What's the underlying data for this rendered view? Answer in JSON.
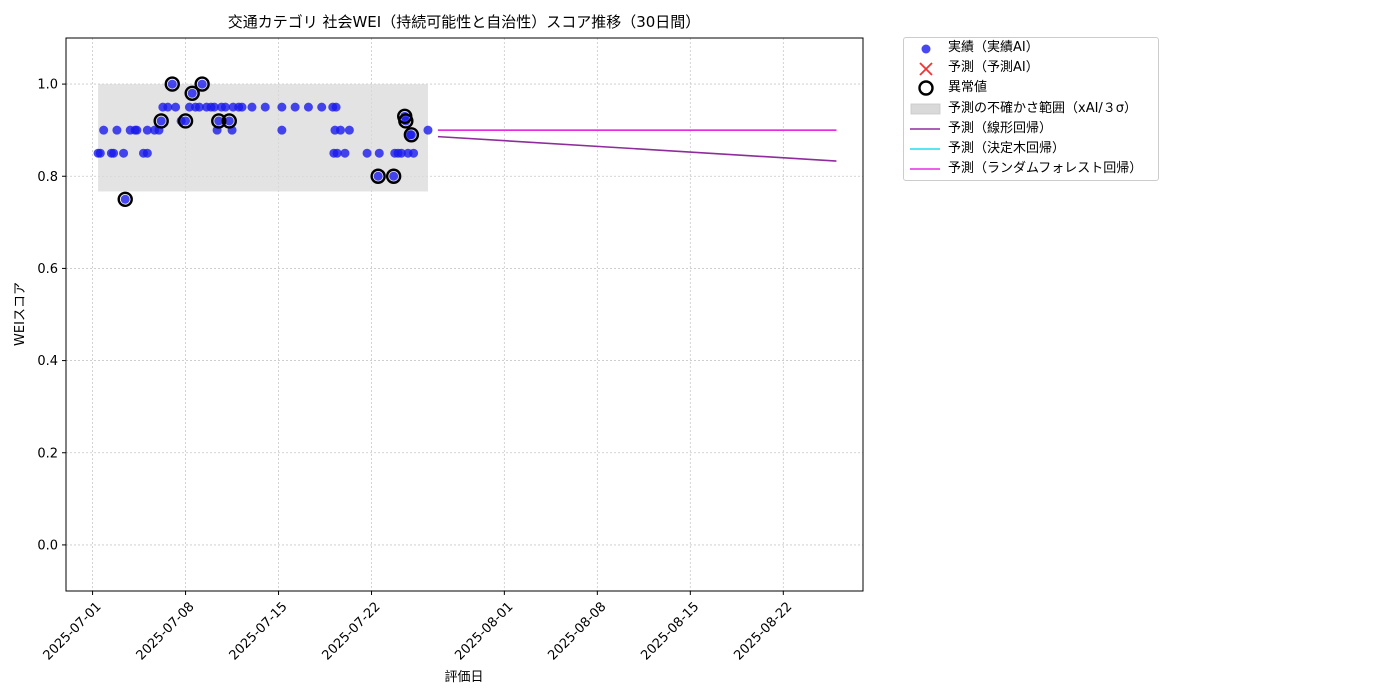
{
  "chart_data": {
    "type": "scatter",
    "title": "交通カテゴリ 社会WEI（持続可能性と自治性）スコア推移（30日間）",
    "xlabel": "評価日",
    "ylabel": "WEIスコア",
    "xlim": [
      "2025-06-29T00:00",
      "2025-08-28T00:00"
    ],
    "ylim": [
      -0.1,
      1.1
    ],
    "x_ticks": [
      "2025-07-01",
      "2025-07-08",
      "2025-07-15",
      "2025-07-22",
      "2025-08-01",
      "2025-08-08",
      "2025-08-15",
      "2025-08-22"
    ],
    "y_ticks": [
      0.0,
      0.2,
      0.4,
      0.6,
      0.8,
      1.0
    ],
    "grid": true,
    "legend_position": "outside-upper-right",
    "colors": {
      "actual": "#1a1aee",
      "forecast_ai": "#ee3333",
      "anomaly": "#000000",
      "uncertainty": "#d9d9d9",
      "linear": "#8e2c9b",
      "tree": "#22ddee",
      "forest": "#e52ce5"
    },
    "series": [
      {
        "name": "実績（実績AI）",
        "type": "scatter",
        "points": [
          [
            "2025-07-01T10:00",
            0.85
          ],
          [
            "2025-07-01T14:00",
            0.85
          ],
          [
            "2025-07-01T20:00",
            0.9
          ],
          [
            "2025-07-02T10:00",
            0.85
          ],
          [
            "2025-07-02T14:00",
            0.85
          ],
          [
            "2025-07-02T20:00",
            0.9
          ],
          [
            "2025-07-03T08:00",
            0.85
          ],
          [
            "2025-07-03T11:00",
            0.75
          ],
          [
            "2025-07-03T20:00",
            0.9
          ],
          [
            "2025-07-04T05:00",
            0.9
          ],
          [
            "2025-07-04T08:00",
            0.9
          ],
          [
            "2025-07-04T20:00",
            0.85
          ],
          [
            "2025-07-05T03:00",
            0.85
          ],
          [
            "2025-07-05T03:00",
            0.9
          ],
          [
            "2025-07-05T16:00",
            0.9
          ],
          [
            "2025-07-06T00:00",
            0.9
          ],
          [
            "2025-07-06T04:00",
            0.92
          ],
          [
            "2025-07-06T07:00",
            0.95
          ],
          [
            "2025-07-06T16:00",
            0.95
          ],
          [
            "2025-07-07T00:00",
            1.0
          ],
          [
            "2025-07-07T06:00",
            0.95
          ],
          [
            "2025-07-07T16:00",
            0.92
          ],
          [
            "2025-07-08T00:00",
            0.92
          ],
          [
            "2025-07-08T07:00",
            0.95
          ],
          [
            "2025-07-08T12:00",
            0.98
          ],
          [
            "2025-07-08T18:00",
            0.95
          ],
          [
            "2025-07-09T01:00",
            0.95
          ],
          [
            "2025-07-09T06:00",
            1.0
          ],
          [
            "2025-07-09T14:00",
            0.95
          ],
          [
            "2025-07-09T22:00",
            0.95
          ],
          [
            "2025-07-10T04:00",
            0.95
          ],
          [
            "2025-07-10T09:00",
            0.9
          ],
          [
            "2025-07-10T12:00",
            0.92
          ],
          [
            "2025-07-10T17:00",
            0.95
          ],
          [
            "2025-07-11T00:00",
            0.95
          ],
          [
            "2025-07-11T07:00",
            0.92
          ],
          [
            "2025-07-11T12:00",
            0.9
          ],
          [
            "2025-07-11T14:00",
            0.95
          ],
          [
            "2025-07-12T00:00",
            0.95
          ],
          [
            "2025-07-12T06:00",
            0.95
          ],
          [
            "2025-07-13T00:00",
            0.95
          ],
          [
            "2025-07-14T00:00",
            0.95
          ],
          [
            "2025-07-15T06:00",
            0.95
          ],
          [
            "2025-07-15T06:00",
            0.9
          ],
          [
            "2025-07-16T06:00",
            0.95
          ],
          [
            "2025-07-17T06:00",
            0.95
          ],
          [
            "2025-07-18T06:00",
            0.95
          ],
          [
            "2025-07-19T02:00",
            0.95
          ],
          [
            "2025-07-19T04:00",
            0.85
          ],
          [
            "2025-07-19T06:00",
            0.9
          ],
          [
            "2025-07-19T08:00",
            0.95
          ],
          [
            "2025-07-19T10:00",
            0.85
          ],
          [
            "2025-07-19T16:00",
            0.9
          ],
          [
            "2025-07-20T00:00",
            0.85
          ],
          [
            "2025-07-20T08:00",
            0.9
          ],
          [
            "2025-07-21T16:00",
            0.85
          ],
          [
            "2025-07-22T12:00",
            0.8
          ],
          [
            "2025-07-22T14:00",
            0.85
          ],
          [
            "2025-07-23T16:00",
            0.8
          ],
          [
            "2025-07-23T18:00",
            0.85
          ],
          [
            "2025-07-24T00:00",
            0.85
          ],
          [
            "2025-07-24T06:00",
            0.85
          ],
          [
            "2025-07-24T12:00",
            0.93
          ],
          [
            "2025-07-24T14:00",
            0.92
          ],
          [
            "2025-07-24T18:00",
            0.85
          ],
          [
            "2025-07-24T22:00",
            0.89
          ],
          [
            "2025-07-25T00:00",
            0.89
          ],
          [
            "2025-07-25T04:00",
            0.85
          ],
          [
            "2025-07-26T06:00",
            0.9
          ]
        ]
      },
      {
        "name": "予測（予測AI）",
        "type": "scatter",
        "points": []
      },
      {
        "name": "異常値",
        "type": "scatter",
        "points": [
          [
            "2025-07-03T11:00",
            0.75
          ],
          [
            "2025-07-06T04:00",
            0.92
          ],
          [
            "2025-07-07T00:00",
            1.0
          ],
          [
            "2025-07-08T00:00",
            0.92
          ],
          [
            "2025-07-08T12:00",
            0.98
          ],
          [
            "2025-07-09T06:00",
            1.0
          ],
          [
            "2025-07-10T12:00",
            0.92
          ],
          [
            "2025-07-11T07:00",
            0.92
          ],
          [
            "2025-07-22T12:00",
            0.8
          ],
          [
            "2025-07-23T16:00",
            0.8
          ],
          [
            "2025-07-24T12:00",
            0.93
          ],
          [
            "2025-07-24T14:00",
            0.92
          ],
          [
            "2025-07-25T00:00",
            0.89
          ]
        ]
      },
      {
        "name": "予測の不確かさ範囲（xAI/３σ）",
        "type": "band",
        "x": [
          "2025-07-01T10:00",
          "2025-07-26T06:00"
        ],
        "y": [
          0.767,
          1.0
        ]
      },
      {
        "name": "予測（線形回帰）",
        "type": "line",
        "points": [
          [
            "2025-07-27T00:00",
            0.886
          ],
          [
            "2025-08-26T00:00",
            0.833
          ]
        ]
      },
      {
        "name": "予測（決定木回帰）",
        "type": "line",
        "points": [
          [
            "2025-07-27T00:00",
            0.9
          ],
          [
            "2025-08-26T00:00",
            0.9
          ]
        ]
      },
      {
        "name": "予測（ランダムフォレスト回帰）",
        "type": "line",
        "points": [
          [
            "2025-07-27T00:00",
            0.9
          ],
          [
            "2025-08-26T00:00",
            0.9
          ]
        ]
      }
    ]
  }
}
